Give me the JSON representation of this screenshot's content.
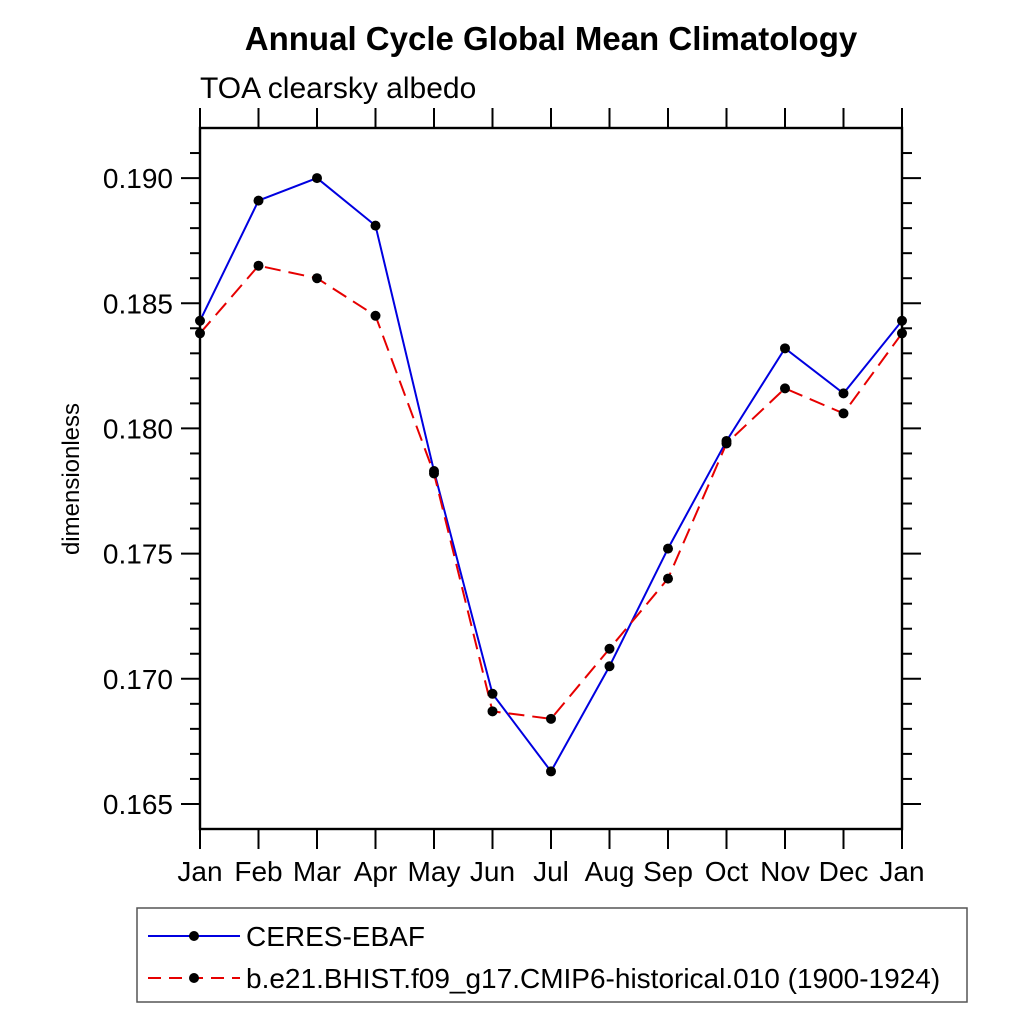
{
  "page": {
    "background": "#ffffff"
  },
  "chart_data": {
    "type": "line",
    "title": "Annual Cycle Global Mean Climatology",
    "subtitle": "TOA clearsky albedo",
    "xlabel": "",
    "ylabel": "dimensionless",
    "categories": [
      "Jan",
      "Feb",
      "Mar",
      "Apr",
      "May",
      "Jun",
      "Jul",
      "Aug",
      "Sep",
      "Oct",
      "Nov",
      "Dec",
      "Jan"
    ],
    "ylim": [
      0.164,
      0.192
    ],
    "ytick_major": [
      0.165,
      0.17,
      0.175,
      0.18,
      0.185,
      0.19
    ],
    "ytick_labels": [
      "0.165",
      "0.170",
      "0.175",
      "0.180",
      "0.185",
      "0.190"
    ],
    "ytick_minor_step": 0.001,
    "grid": false,
    "legend_position": "bottom-left",
    "axis_color": "#000000",
    "marker_color": "#000000",
    "series": [
      {
        "name": "CERES-EBAF",
        "color": "#0000e0",
        "line_style": "solid",
        "marker": "filled-circle",
        "values": [
          0.1843,
          0.1891,
          0.19,
          0.1881,
          0.1783,
          0.1694,
          0.1663,
          0.1705,
          0.1752,
          0.1795,
          0.1832,
          0.1814,
          0.1843
        ]
      },
      {
        "name": "b.e21.BHIST.f09_g17.CMIP6-historical.010 (1900-1924)",
        "color": "#e60000",
        "line_style": "dashed",
        "marker": "filled-circle",
        "values": [
          0.1838,
          0.1865,
          0.186,
          0.1845,
          0.1782,
          0.1687,
          0.1684,
          0.1712,
          0.174,
          0.1794,
          0.1816,
          0.1806,
          0.1838
        ]
      }
    ]
  }
}
